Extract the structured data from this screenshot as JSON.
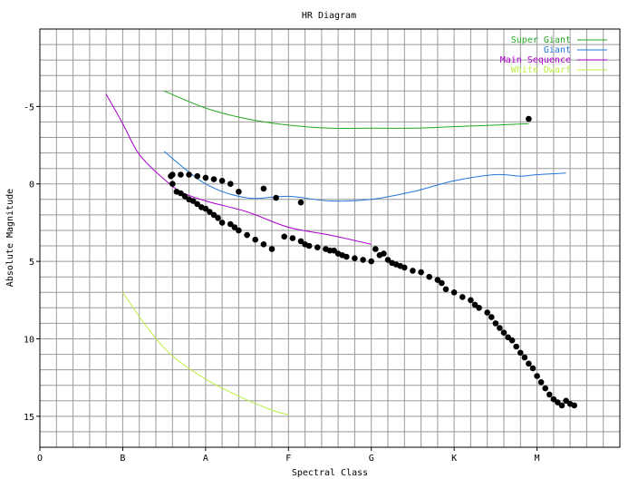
{
  "chart_data": {
    "type": "scatter",
    "title": "HR Diagram",
    "xlabel": "Spectral Class",
    "ylabel": "Absolute Magnitude",
    "xlim": [
      0,
      7
    ],
    "ylim": [
      17,
      -10
    ],
    "y_inverted": true,
    "grid": true,
    "x_ticks": [
      {
        "pos": 0,
        "label": "O"
      },
      {
        "pos": 1,
        "label": "B"
      },
      {
        "pos": 2,
        "label": "A"
      },
      {
        "pos": 3,
        "label": "F"
      },
      {
        "pos": 4,
        "label": "G"
      },
      {
        "pos": 5,
        "label": "K"
      },
      {
        "pos": 6,
        "label": "M"
      }
    ],
    "y_ticks": [
      -5,
      0,
      5,
      10,
      15
    ],
    "legend_position": "top-right",
    "lines": [
      {
        "name": "Super Giant",
        "color": "#22aa22",
        "x": [
          1.5,
          2.0,
          2.5,
          3.0,
          3.5,
          4.0,
          4.5,
          5.0,
          5.5,
          5.9
        ],
        "y": [
          -6.0,
          -4.9,
          -4.2,
          -3.8,
          -3.6,
          -3.6,
          -3.6,
          -3.7,
          -3.8,
          -3.9
        ]
      },
      {
        "name": "Giant",
        "color": "#2277dd",
        "x": [
          1.5,
          2.0,
          2.5,
          3.0,
          3.5,
          4.0,
          4.5,
          5.0,
          5.5,
          5.8,
          6.0,
          6.35
        ],
        "y": [
          -2.1,
          0.0,
          0.9,
          0.8,
          1.1,
          1.0,
          0.5,
          -0.2,
          -0.6,
          -0.5,
          -0.6,
          -0.7
        ]
      },
      {
        "name": "Main Sequence",
        "color": "#aa00cc",
        "x": [
          0.8,
          1.0,
          1.2,
          1.5,
          1.7,
          2.0,
          2.5,
          3.0,
          3.5,
          4.0
        ],
        "y": [
          -5.8,
          -3.9,
          -1.9,
          -0.3,
          0.5,
          1.1,
          1.8,
          2.8,
          3.3,
          3.9
        ]
      },
      {
        "name": "White Dwarf",
        "color": "#bbee44",
        "x": [
          1.0,
          1.3,
          1.6,
          2.0,
          2.4,
          2.8,
          3.0
        ],
        "y": [
          7.0,
          9.3,
          11.1,
          12.6,
          13.7,
          14.6,
          14.9
        ]
      }
    ],
    "points": {
      "x": [
        1.58,
        1.6,
        1.7,
        1.8,
        1.9,
        2.0,
        2.1,
        2.2,
        2.3,
        2.4,
        2.7,
        2.85,
        3.15,
        1.6,
        1.65,
        1.7,
        1.75,
        1.8,
        1.85,
        1.9,
        1.95,
        2.0,
        2.05,
        2.1,
        2.15,
        2.2,
        2.3,
        2.35,
        2.4,
        2.5,
        2.6,
        2.7,
        2.8,
        2.95,
        3.05,
        3.15,
        3.2,
        3.25,
        3.35,
        3.45,
        3.5,
        3.55,
        3.6,
        3.65,
        3.7,
        3.8,
        3.9,
        4.0,
        4.05,
        4.1,
        4.15,
        4.2,
        4.25,
        4.3,
        4.35,
        4.4,
        4.5,
        4.6,
        4.7,
        4.8,
        4.85,
        4.9,
        5.0,
        5.1,
        5.2,
        5.25,
        5.3,
        5.4,
        5.45,
        5.5,
        5.55,
        5.6,
        5.65,
        5.7,
        5.75,
        5.8,
        5.85,
        5.9,
        5.95,
        6.0,
        6.05,
        6.1,
        6.15,
        6.2,
        6.25,
        6.3,
        6.35,
        6.4,
        6.45
      ],
      "y": [
        -0.5,
        -0.6,
        -0.6,
        -0.6,
        -0.5,
        -0.4,
        -0.3,
        -0.2,
        0.0,
        0.5,
        0.3,
        0.9,
        1.2,
        0.0,
        0.5,
        0.6,
        0.8,
        1.0,
        1.1,
        1.3,
        1.5,
        1.6,
        1.8,
        2.0,
        2.2,
        2.5,
        2.6,
        2.8,
        3.0,
        3.3,
        3.6,
        3.9,
        4.2,
        3.4,
        3.5,
        3.7,
        3.9,
        4.0,
        4.1,
        4.2,
        4.3,
        4.3,
        4.5,
        4.6,
        4.7,
        4.8,
        4.9,
        5.0,
        4.2,
        4.6,
        4.5,
        4.9,
        5.1,
        5.2,
        5.3,
        5.4,
        5.6,
        5.7,
        6.0,
        6.2,
        6.4,
        6.8,
        7.0,
        7.3,
        7.5,
        7.8,
        8.0,
        8.3,
        8.6,
        9.0,
        9.3,
        9.6,
        9.9,
        10.1,
        10.5,
        10.9,
        11.2,
        11.6,
        11.9,
        12.4,
        12.8,
        13.2,
        13.6,
        13.9,
        14.1,
        14.3,
        14.0,
        14.2,
        14.3
      ],
      "extra": {
        "x": 5.9,
        "y": -4.2
      }
    }
  }
}
